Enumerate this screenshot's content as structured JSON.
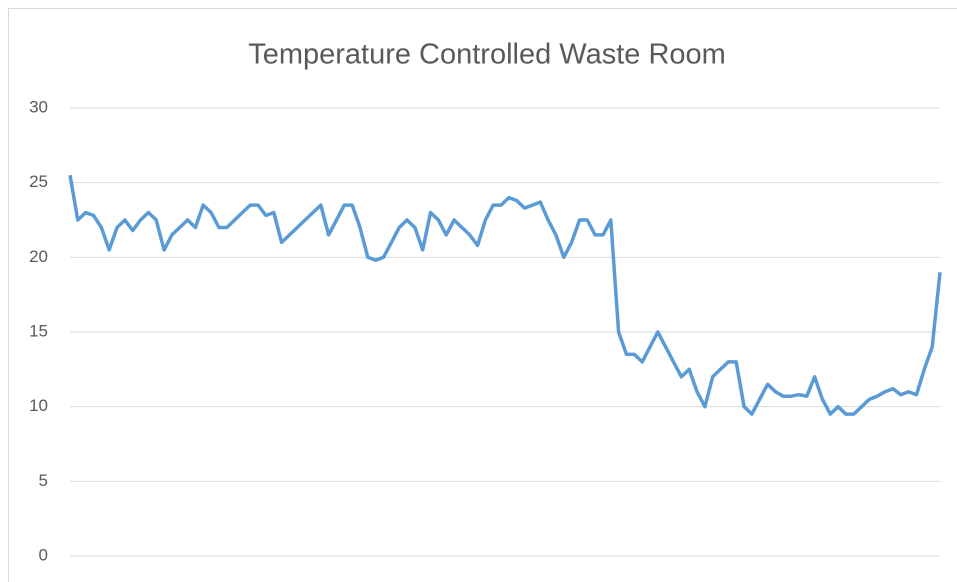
{
  "chart_data": {
    "type": "line",
    "title": "Temperature  Controlled Waste Room",
    "categories": [
      null,
      null,
      null,
      null,
      null,
      null,
      null,
      null,
      null,
      null,
      null,
      null,
      null,
      null,
      null,
      null,
      null,
      null,
      null,
      null,
      null,
      null,
      null,
      null,
      null,
      null,
      null,
      null,
      null,
      null,
      null,
      null,
      null,
      null,
      null,
      null,
      null,
      null,
      null,
      null,
      null,
      null,
      null,
      null,
      null,
      null,
      null,
      null,
      null,
      null,
      null,
      null,
      null,
      null,
      null,
      null,
      null,
      null,
      null,
      null,
      null,
      null,
      null,
      null,
      null,
      null,
      null,
      null,
      null,
      null,
      null,
      null,
      null,
      null,
      null,
      null,
      null,
      null,
      null,
      null,
      null,
      null,
      null,
      null,
      null,
      null,
      null,
      null,
      null,
      null,
      null,
      null,
      null,
      null,
      null,
      null,
      null,
      null,
      null,
      null,
      null,
      null,
      null,
      null,
      null,
      null,
      null,
      null,
      null,
      null,
      null,
      null
    ],
    "series": [
      {
        "name": null,
        "color": "#5b9bd5",
        "values": [
          25.5,
          22.5,
          23,
          22.8,
          22,
          20.5,
          22,
          22.5,
          21.8,
          22.5,
          23,
          22.5,
          20.5,
          21.5,
          22,
          22.5,
          22,
          23.5,
          23,
          22,
          22,
          22.5,
          23,
          23.5,
          23.5,
          22.8,
          23,
          21,
          21.5,
          22,
          22.5,
          23,
          23.5,
          21.5,
          22.5,
          23.5,
          23.5,
          22,
          20,
          19.8,
          20,
          21,
          22,
          22.5,
          22,
          20.5,
          23,
          22.5,
          21.5,
          22.5,
          22,
          21.5,
          20.8,
          22.5,
          23.5,
          23.5,
          24,
          23.8,
          23.3,
          23.5,
          23.7,
          22.5,
          21.5,
          20,
          21,
          22.5,
          22.5,
          21.5,
          21.5,
          22.5,
          15,
          13.5,
          13.5,
          13,
          14,
          15,
          14,
          13,
          12,
          12.5,
          11,
          10,
          12,
          12.5,
          13,
          13,
          10,
          9.5,
          10.5,
          11.5,
          11,
          10.7,
          10.7,
          10.8,
          10.7,
          12,
          10.5,
          9.5,
          10,
          9.5,
          9.5,
          10,
          10.5,
          10.7,
          11,
          11.2,
          10.8,
          11,
          10.8,
          12.5,
          14,
          19
        ]
      }
    ],
    "ylim": [
      0,
      30
    ],
    "yticks": [
      0,
      5,
      10,
      15,
      20,
      25,
      30
    ],
    "grid": true
  }
}
